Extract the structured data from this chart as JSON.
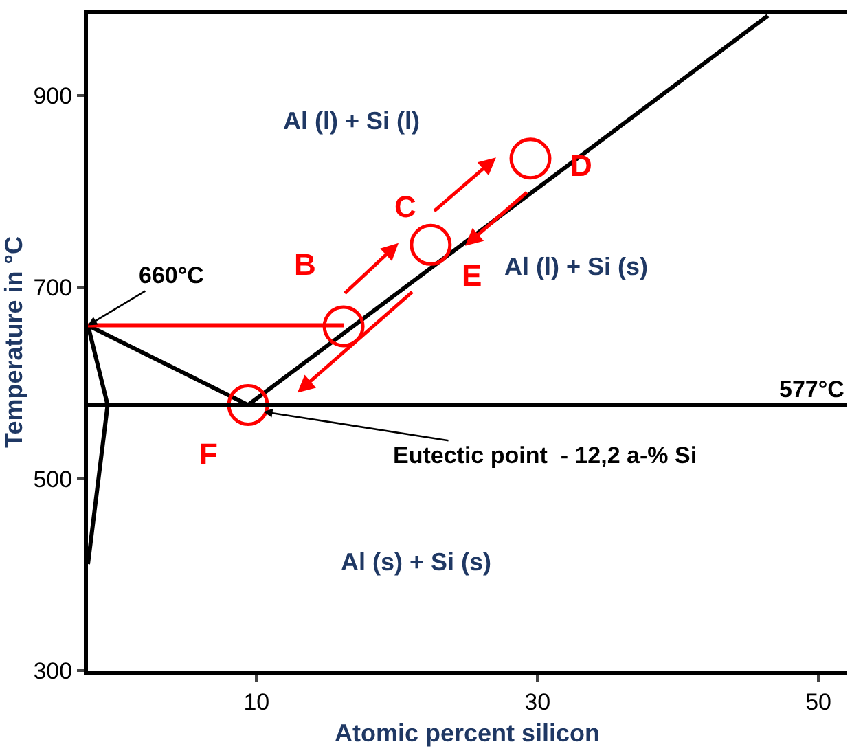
{
  "chart_data": {
    "type": "line",
    "xlabel": "Atomic percent silicon",
    "ylabel": "Temperature in °C",
    "xlim": [
      -2,
      52
    ],
    "ylim": [
      300,
      985
    ],
    "xticks": [
      10,
      30,
      50
    ],
    "yticks": [
      300,
      500,
      700,
      900
    ],
    "line_style": "solid",
    "marker": "none",
    "series": [
      {
        "color": "#000000",
        "x": [
          9.4,
          46.4
        ],
        "values": [
          577,
          983
        ]
      },
      {
        "color": "#000000",
        "x": [
          -2,
          9.4
        ],
        "values": [
          660,
          577
        ]
      },
      {
        "color": "#000000",
        "x": [
          -2,
          -0.6,
          -2
        ],
        "values": [
          660,
          577,
          411
        ]
      },
      {
        "color": "#ff0000",
        "x": [
          -2,
          16.2
        ],
        "values": [
          660,
          660
        ]
      },
      {
        "type": "scatter",
        "marker": "circle",
        "color": "#ff0000",
        "x": [
          9.4,
          16.2,
          22.4,
          29.5
        ],
        "values": [
          577,
          659,
          744,
          834
        ]
      }
    ],
    "ref_lines": [
      {
        "axis": "y",
        "value": 577,
        "label": "577°C",
        "color": "#000000"
      }
    ],
    "annotations": [
      "Al (l) + Si (l)",
      "Al (l) + Si (s)",
      "Al (s) + Si (s)",
      {
        "text": "660°C",
        "x": -2,
        "y": 660
      },
      {
        "text": "Eutectic point  - 12,2 a-% Si",
        "x": 10.5,
        "y": 570
      },
      {
        "text": "B",
        "x": 16.2,
        "y": 659
      },
      {
        "text": "C",
        "x": 22.4,
        "y": 744
      },
      {
        "text": "D",
        "x": 29.5,
        "y": 834
      },
      {
        "text": "E",
        "x": 22.4,
        "y": 744
      },
      {
        "text": "F",
        "x": 9.4,
        "y": 577
      }
    ]
  }
}
